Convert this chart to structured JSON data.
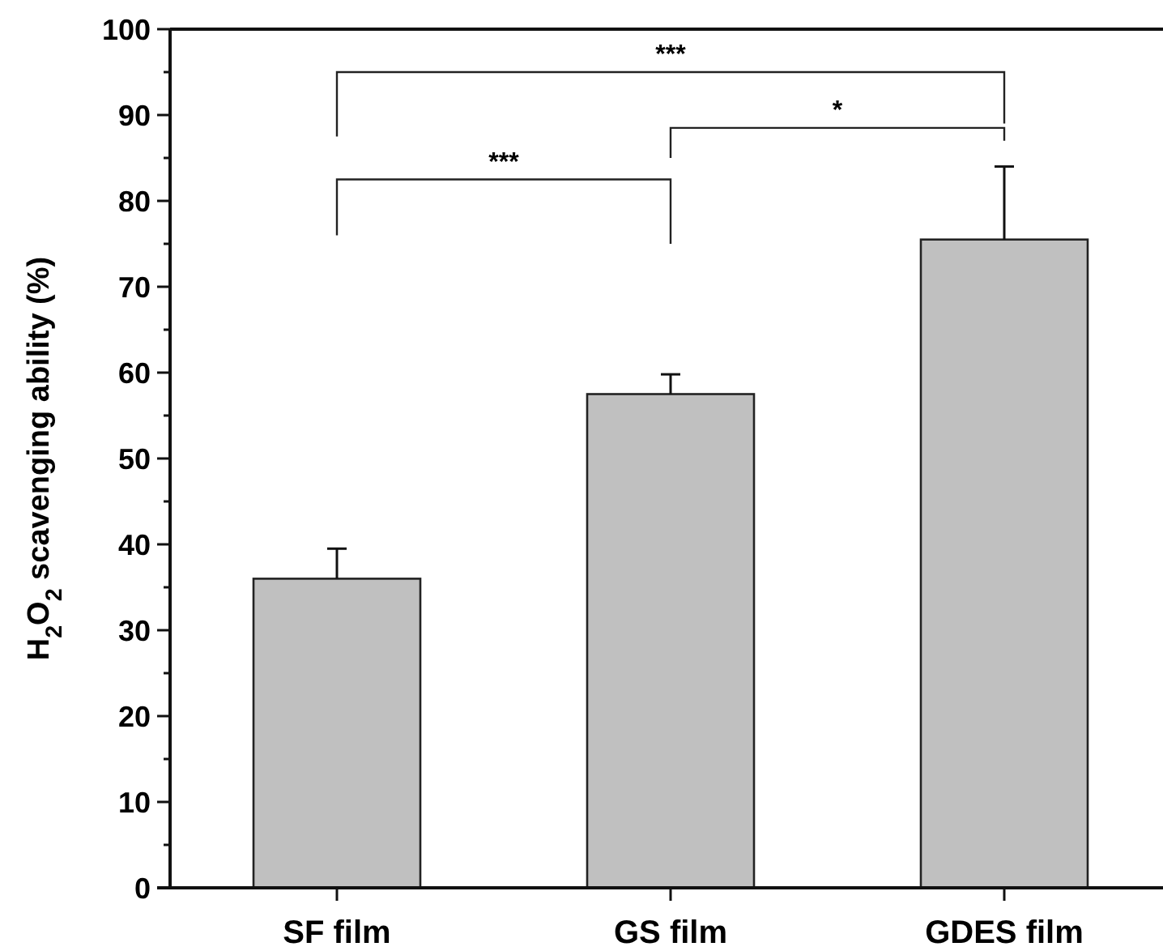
{
  "chart_data": {
    "type": "bar",
    "ylabel": "H$_{2}$O$_{2}$ scavenging ability (%)",
    "categories": [
      "SF film",
      "GS film",
      "GDES film"
    ],
    "values": [
      36,
      57.5,
      75.5
    ],
    "color": "#c0c0c0",
    "errors": [
      [
        36,
        39.5
      ],
      [
        57.5,
        59.8
      ],
      [
        75.5,
        84
      ]
    ],
    "ylim": [
      0,
      100
    ],
    "yticks": [
      0,
      {
        "value": 5,
        "label": null
      },
      10,
      {
        "value": 15,
        "label": null
      },
      20,
      {
        "value": 25,
        "label": null
      },
      30,
      {
        "value": 35,
        "label": null
      },
      40,
      {
        "value": 45,
        "label": null
      },
      50,
      {
        "value": 55,
        "label": null
      },
      60,
      {
        "value": 65,
        "label": null
      },
      70,
      {
        "value": 75,
        "label": null
      },
      80,
      {
        "value": 85,
        "label": null
      },
      90,
      {
        "value": 95,
        "label": null
      },
      100
    ],
    "annotations": [
      "***",
      "*",
      "***"
    ],
    "grid": false
  }
}
